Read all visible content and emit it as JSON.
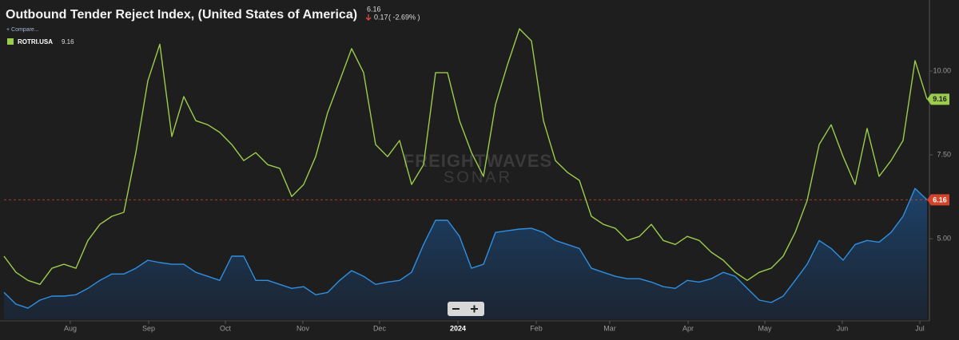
{
  "chart_data": {
    "type": "line",
    "title": "Outbound Tender Reject Index, (United States of America)",
    "change": "0.17",
    "change_label": "( -2.69% )",
    "compare_button": "+ Compare...",
    "watermark": [
      "FREIGHTWAVES",
      "SONAR"
    ],
    "xlim": [
      0,
      77
    ],
    "xticks": [
      {
        "value": 5.53,
        "label": "Aug"
      },
      {
        "value": 12.07,
        "label": "Sep"
      },
      {
        "value": 18.47,
        "label": "Oct"
      },
      {
        "value": 24.93,
        "label": "Nov"
      },
      {
        "value": 31.33,
        "label": "Dec"
      },
      {
        "value": 37.87,
        "label": "2024"
      },
      {
        "value": 44.4,
        "label": "Feb"
      },
      {
        "value": 50.53,
        "label": "Mar"
      },
      {
        "value": 57.07,
        "label": "Apr"
      },
      {
        "value": 63.47,
        "label": "May"
      },
      {
        "value": 69.93,
        "label": "Jun"
      },
      {
        "value": 76.4,
        "label": "Jul"
      }
    ],
    "ylim": [
      2.6,
      12.0
    ],
    "yticks": [
      {
        "value": 5,
        "label": "5.00"
      },
      {
        "value": 7.5,
        "label": "7.50"
      },
      {
        "value": 10,
        "label": "10.00"
      }
    ],
    "grid": false,
    "series": [
      {
        "color": "#2f8fe0",
        "area": true,
        "tag_color": "#d4432b",
        "values": [
          3.4,
          3.05,
          2.93,
          3.17,
          3.29,
          3.29,
          3.33,
          3.52,
          3.76,
          3.95,
          3.95,
          4.12,
          4.36,
          4.29,
          4.24,
          4.24,
          4.0,
          3.88,
          3.76,
          4.48,
          4.48,
          3.76,
          3.76,
          3.64,
          3.52,
          3.57,
          3.33,
          3.4,
          3.76,
          4.05,
          3.88,
          3.64,
          3.71,
          3.76,
          4.0,
          4.83,
          5.55,
          5.55,
          5.07,
          4.12,
          4.24,
          5.19,
          5.24,
          5.29,
          5.31,
          5.19,
          4.95,
          4.83,
          4.71,
          4.12,
          4.0,
          3.88,
          3.81,
          3.81,
          3.71,
          3.57,
          3.52,
          3.76,
          3.71,
          3.81,
          4.0,
          3.88,
          3.52,
          3.17,
          3.1,
          3.29,
          3.76,
          4.24,
          4.95,
          4.71,
          4.36,
          4.83,
          4.95,
          4.9,
          5.19,
          5.67,
          6.5,
          6.16
        ]
      },
      {
        "name": "ROTRI.USA",
        "color": "#9ccc4c",
        "area": false,
        "tag_color": "#9ccc4c",
        "values": [
          4.48,
          4.0,
          3.76,
          3.64,
          4.12,
          4.24,
          4.12,
          4.95,
          5.43,
          5.67,
          5.79,
          7.57,
          9.71,
          10.8,
          8.05,
          9.24,
          8.52,
          8.4,
          8.17,
          7.81,
          7.33,
          7.57,
          7.21,
          7.1,
          6.26,
          6.62,
          7.45,
          8.76,
          9.71,
          10.67,
          9.95,
          7.81,
          7.45,
          7.93,
          6.62,
          7.21,
          9.95,
          9.95,
          8.52,
          7.57,
          6.86,
          9.0,
          10.19,
          11.26,
          10.9,
          8.52,
          7.33,
          6.98,
          6.74,
          5.67,
          5.43,
          5.31,
          4.95,
          5.07,
          5.43,
          4.95,
          4.83,
          5.07,
          4.95,
          4.6,
          4.36,
          4.0,
          3.76,
          4.0,
          4.12,
          4.48,
          5.19,
          6.14,
          7.81,
          8.4,
          7.45,
          6.62,
          8.29,
          6.86,
          7.33,
          7.93,
          10.31,
          9.16
        ]
      }
    ]
  }
}
